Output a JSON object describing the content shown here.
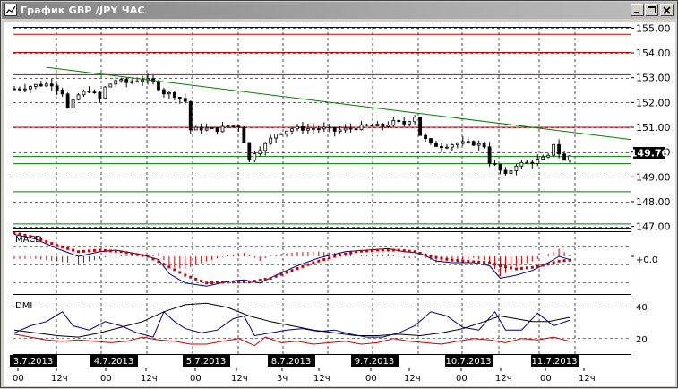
{
  "window": {
    "title": "График GBP /JPY  ЧАС",
    "controls": [
      "minimize",
      "maximize",
      "close"
    ]
  },
  "chart_data": [
    {
      "type": "candlestick",
      "title": "",
      "instrument": "GBP/JPY",
      "timeframe": "ЧАС",
      "y_ticks": [
        "155.00",
        "154.00",
        "153.00",
        "152.00",
        "151.00",
        "150.00",
        "149.00",
        "148.00",
        "147.00"
      ],
      "ylim": [
        146.95,
        155.05
      ],
      "current_price": "149.76",
      "horizontal_levels": [
        {
          "price": 154.75,
          "color": "#cc0000"
        },
        {
          "price": 154.02,
          "color": "#cc0000"
        },
        {
          "price": 153.12,
          "color": "#cc0000"
        },
        {
          "price": 151.0,
          "color": "#cc0000"
        },
        {
          "price": 149.82,
          "color": "#008000"
        },
        {
          "price": 149.53,
          "color": "#008000"
        },
        {
          "price": 148.4,
          "color": "#008000"
        },
        {
          "price": 147.1,
          "color": "#008000"
        }
      ],
      "trendline": {
        "color": "#008000",
        "from": {
          "bar": 6,
          "price": 153.42
        },
        "to": {
          "bar": 105,
          "price": 150.55
        }
      },
      "price_path": [
        [
          0,
          152.55
        ],
        [
          4,
          152.7
        ],
        [
          7,
          152.75
        ],
        [
          9,
          152.4
        ],
        [
          10,
          151.75
        ],
        [
          12,
          152.3
        ],
        [
          14,
          152.5
        ],
        [
          16,
          152.15
        ],
        [
          17,
          152.6
        ],
        [
          19,
          152.9
        ],
        [
          21,
          152.8
        ],
        [
          24,
          152.95
        ],
        [
          26,
          152.8
        ],
        [
          28,
          152.4
        ],
        [
          30,
          152.3
        ],
        [
          32,
          152.05
        ],
        [
          33,
          150.9
        ],
        [
          35,
          150.95
        ],
        [
          38,
          150.9
        ],
        [
          40,
          151.05
        ],
        [
          42,
          151.05
        ],
        [
          43,
          150.45
        ],
        [
          44,
          149.65
        ],
        [
          45,
          150.0
        ],
        [
          47,
          150.3
        ],
        [
          49,
          150.75
        ],
        [
          52,
          150.95
        ],
        [
          55,
          150.95
        ],
        [
          58,
          150.95
        ],
        [
          60,
          150.85
        ],
        [
          63,
          150.95
        ],
        [
          66,
          151.05
        ],
        [
          69,
          151.05
        ],
        [
          71,
          151.2
        ],
        [
          73,
          151.15
        ],
        [
          75,
          151.45
        ],
        [
          76,
          150.7
        ],
        [
          78,
          150.3
        ],
        [
          80,
          150.25
        ],
        [
          83,
          150.35
        ],
        [
          86,
          150.35
        ],
        [
          88,
          150.25
        ],
        [
          89,
          149.6
        ],
        [
          90,
          149.45
        ],
        [
          91,
          149.25
        ],
        [
          92,
          149.05
        ],
        [
          94,
          149.5
        ],
        [
          97,
          149.6
        ],
        [
          100,
          149.8
        ],
        [
          101,
          150.35
        ],
        [
          102,
          149.95
        ],
        [
          103,
          149.65
        ],
        [
          104,
          149.85
        ]
      ],
      "x_date_labels": [
        "3.7.2013",
        "4.7.2013",
        "5.7.2013",
        "8.7.2013",
        "9.7.2013",
        "10.7.2013",
        "11.7.2013"
      ],
      "x_hour_labels": [
        "00",
        "12ч",
        "00",
        "12ч",
        "00",
        "12ч",
        "3ч",
        "12ч",
        "00",
        "12ч",
        "00",
        "12ч",
        "00",
        "12ч"
      ]
    },
    {
      "type": "macd",
      "indicator_label": "MACD",
      "zero_label": "+0.0",
      "ylim": [
        -1.2,
        0.8
      ],
      "signal_color": "#cc0000",
      "macd_color": "#000080",
      "histogram_color": "#cc0000",
      "macd_line": [
        [
          0,
          0.7
        ],
        [
          4,
          0.55
        ],
        [
          8,
          0.25
        ],
        [
          12,
          0.0
        ],
        [
          16,
          0.15
        ],
        [
          19,
          0.2
        ],
        [
          24,
          0.05
        ],
        [
          27,
          -0.1
        ],
        [
          29,
          -0.55
        ],
        [
          32,
          -0.85
        ],
        [
          36,
          -0.95
        ],
        [
          40,
          -0.8
        ],
        [
          43,
          -0.75
        ],
        [
          46,
          -0.85
        ],
        [
          49,
          -0.6
        ],
        [
          53,
          -0.3
        ],
        [
          57,
          -0.05
        ],
        [
          62,
          0.15
        ],
        [
          66,
          0.2
        ],
        [
          70,
          0.25
        ],
        [
          73,
          0.15
        ],
        [
          76,
          0.1
        ],
        [
          79,
          -0.15
        ],
        [
          82,
          -0.2
        ],
        [
          86,
          -0.2
        ],
        [
          89,
          -0.3
        ],
        [
          91,
          -0.7
        ],
        [
          94,
          -0.6
        ],
        [
          97,
          -0.45
        ],
        [
          100,
          -0.2
        ],
        [
          102,
          0.0
        ],
        [
          104,
          -0.1
        ]
      ],
      "signal_line": [
        [
          0,
          0.75
        ],
        [
          4,
          0.6
        ],
        [
          8,
          0.35
        ],
        [
          12,
          0.15
        ],
        [
          16,
          0.2
        ],
        [
          20,
          0.15
        ],
        [
          25,
          0.0
        ],
        [
          28,
          -0.25
        ],
        [
          32,
          -0.6
        ],
        [
          36,
          -0.85
        ],
        [
          40,
          -0.82
        ],
        [
          44,
          -0.82
        ],
        [
          48,
          -0.7
        ],
        [
          52,
          -0.45
        ],
        [
          56,
          -0.2
        ],
        [
          60,
          0.0
        ],
        [
          64,
          0.15
        ],
        [
          68,
          0.2
        ],
        [
          72,
          0.2
        ],
        [
          75,
          0.15
        ],
        [
          78,
          0.0
        ],
        [
          82,
          -0.12
        ],
        [
          86,
          -0.17
        ],
        [
          89,
          -0.2
        ],
        [
          91,
          -0.3
        ],
        [
          94,
          -0.4
        ],
        [
          97,
          -0.35
        ],
        [
          100,
          -0.25
        ],
        [
          102,
          -0.15
        ],
        [
          104,
          -0.12
        ]
      ]
    },
    {
      "type": "dmi",
      "indicator_label": "DMI",
      "y_ticks": [
        "40",
        "20"
      ],
      "ylim": [
        5,
        45
      ],
      "adx_color": "#000000",
      "plus_di_color": "#000080",
      "minus_di_color": "#cc0000",
      "plus_di": [
        [
          0,
          20
        ],
        [
          3,
          25
        ],
        [
          6,
          28
        ],
        [
          9,
          35
        ],
        [
          11,
          25
        ],
        [
          14,
          22
        ],
        [
          17,
          28
        ],
        [
          20,
          25
        ],
        [
          23,
          20
        ],
        [
          26,
          17
        ],
        [
          28,
          35
        ],
        [
          30,
          28
        ],
        [
          32,
          23
        ],
        [
          35,
          20
        ],
        [
          38,
          22
        ],
        [
          41,
          30
        ],
        [
          43,
          32
        ],
        [
          45,
          18
        ],
        [
          48,
          20
        ],
        [
          51,
          22
        ],
        [
          54,
          23
        ],
        [
          57,
          21
        ],
        [
          60,
          22
        ],
        [
          63,
          19
        ],
        [
          66,
          17
        ],
        [
          69,
          17
        ],
        [
          72,
          20
        ],
        [
          75,
          25
        ],
        [
          78,
          35
        ],
        [
          81,
          32
        ],
        [
          84,
          24
        ],
        [
          87,
          22
        ],
        [
          90,
          35
        ],
        [
          92,
          22
        ],
        [
          95,
          22
        ],
        [
          98,
          34
        ],
        [
          101,
          25
        ],
        [
          104,
          29
        ]
      ],
      "minus_di": [
        [
          0,
          19
        ],
        [
          3,
          17
        ],
        [
          6,
          15
        ],
        [
          9,
          14
        ],
        [
          12,
          15
        ],
        [
          15,
          14
        ],
        [
          18,
          13
        ],
        [
          21,
          14
        ],
        [
          24,
          17
        ],
        [
          27,
          15
        ],
        [
          30,
          14
        ],
        [
          33,
          12
        ],
        [
          36,
          12
        ],
        [
          39,
          14
        ],
        [
          42,
          16
        ],
        [
          45,
          11
        ],
        [
          47,
          17
        ],
        [
          50,
          13
        ],
        [
          53,
          14
        ],
        [
          56,
          12
        ],
        [
          59,
          13
        ],
        [
          62,
          14
        ],
        [
          65,
          12
        ],
        [
          68,
          13
        ],
        [
          71,
          16
        ],
        [
          74,
          14
        ],
        [
          77,
          13
        ],
        [
          80,
          12
        ],
        [
          83,
          14
        ],
        [
          86,
          16
        ],
        [
          89,
          15
        ],
        [
          92,
          13
        ],
        [
          95,
          16
        ],
        [
          98,
          15
        ],
        [
          101,
          17
        ],
        [
          104,
          14
        ]
      ],
      "adx": [
        [
          0,
          22
        ],
        [
          4,
          20
        ],
        [
          8,
          18
        ],
        [
          12,
          17
        ],
        [
          16,
          20
        ],
        [
          20,
          24
        ],
        [
          24,
          28
        ],
        [
          28,
          35
        ],
        [
          32,
          40
        ],
        [
          36,
          41
        ],
        [
          40,
          38
        ],
        [
          44,
          32
        ],
        [
          48,
          28
        ],
        [
          52,
          25
        ],
        [
          56,
          22
        ],
        [
          60,
          20
        ],
        [
          64,
          18
        ],
        [
          68,
          18
        ],
        [
          72,
          19
        ],
        [
          76,
          18
        ],
        [
          80,
          20
        ],
        [
          84,
          23
        ],
        [
          88,
          28
        ],
        [
          91,
          32
        ],
        [
          94,
          30
        ],
        [
          97,
          28
        ],
        [
          100,
          28
        ],
        [
          104,
          31
        ]
      ]
    }
  ]
}
